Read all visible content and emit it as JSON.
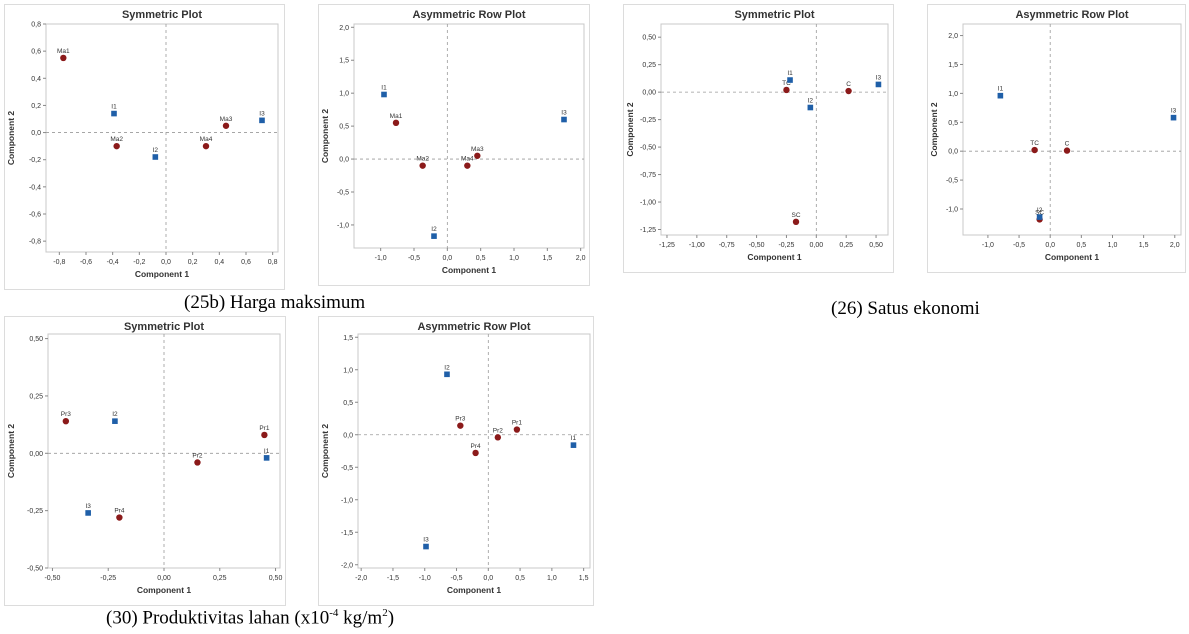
{
  "colors": {
    "row_point": "#8b1a1a",
    "col_point": "#1f5fa8",
    "axis_ref": "#9a9a9a",
    "plot_border": "#c8c8c8",
    "panel_border": "#dcdcdc",
    "text": "#333333"
  },
  "groups": [
    {
      "caption": "(25b) Harga maksimum"
    },
    {
      "caption": "(26) Satus ekonomi"
    },
    {
      "caption_main": "(30) ",
      "caption_bold": "Produktivitas lahan",
      "caption_pre": " (x10",
      "caption_sup": "-4",
      "caption_mid": " kg/m",
      "caption_sup2": "2",
      "caption_end": ")"
    }
  ],
  "chart_data": [
    {
      "type": "scatter",
      "title": "Symmetric Plot",
      "xlabel": "Component 1",
      "ylabel": "Component 2",
      "xlim": [
        -0.9,
        0.84
      ],
      "ylim": [
        -0.88,
        0.8
      ],
      "xticks": [
        -0.8,
        -0.6,
        -0.4,
        -0.2,
        0.0,
        0.2,
        0.4,
        0.6,
        0.8
      ],
      "yticks": [
        -0.8,
        -0.6,
        -0.4,
        -0.2,
        0.0,
        0.2,
        0.4,
        0.6,
        0.8
      ],
      "decimals": 1,
      "series": [
        {
          "name": "rows",
          "marker": "circle",
          "points": [
            {
              "label": "Ma1",
              "x": -0.77,
              "y": 0.55
            },
            {
              "label": "Ma2",
              "x": -0.37,
              "y": -0.1
            },
            {
              "label": "Ma3",
              "x": 0.45,
              "y": 0.05
            },
            {
              "label": "Ma4",
              "x": 0.3,
              "y": -0.1
            }
          ]
        },
        {
          "name": "columns",
          "marker": "square",
          "points": [
            {
              "label": "I1",
              "x": -0.39,
              "y": 0.14
            },
            {
              "label": "I2",
              "x": -0.08,
              "y": -0.18
            },
            {
              "label": "I3",
              "x": 0.72,
              "y": 0.09
            }
          ]
        }
      ]
    },
    {
      "type": "scatter",
      "title": "Asymmetric Row Plot",
      "xlabel": "Component 1",
      "ylabel": "Component 2",
      "xlim": [
        -1.4,
        2.05
      ],
      "ylim": [
        -1.35,
        2.05
      ],
      "xticks": [
        -1.0,
        -0.5,
        0.0,
        0.5,
        1.0,
        1.5,
        2.0
      ],
      "yticks": [
        -1.0,
        -0.5,
        0.0,
        0.5,
        1.0,
        1.5,
        2.0
      ],
      "decimals": 1,
      "series": [
        {
          "name": "rows",
          "marker": "circle",
          "points": [
            {
              "label": "Ma1",
              "x": -0.77,
              "y": 0.55
            },
            {
              "label": "Ma2",
              "x": -0.37,
              "y": -0.1
            },
            {
              "label": "Ma3",
              "x": 0.45,
              "y": 0.05
            },
            {
              "label": "Ma4",
              "x": 0.3,
              "y": -0.1
            }
          ]
        },
        {
          "name": "columns",
          "marker": "square",
          "points": [
            {
              "label": "I1",
              "x": -0.95,
              "y": 0.98
            },
            {
              "label": "I2",
              "x": -0.2,
              "y": -1.17
            },
            {
              "label": "I3",
              "x": 1.75,
              "y": 0.6
            }
          ]
        }
      ]
    },
    {
      "type": "scatter",
      "title": "Symmetric Plot",
      "xlabel": "Component 1",
      "ylabel": "Component 2",
      "xlim": [
        -1.3,
        0.6
      ],
      "ylim": [
        -1.3,
        0.62
      ],
      "xticks": [
        -1.25,
        -1.0,
        -0.75,
        -0.5,
        -0.25,
        0.0,
        0.25,
        0.5
      ],
      "yticks": [
        -1.25,
        -1.0,
        -0.75,
        -0.5,
        -0.25,
        0.0,
        0.25,
        0.5
      ],
      "decimals": 2,
      "series": [
        {
          "name": "rows",
          "marker": "circle",
          "points": [
            {
              "label": "TC",
              "x": -0.25,
              "y": 0.02
            },
            {
              "label": "C",
              "x": 0.27,
              "y": 0.01
            },
            {
              "label": "SC",
              "x": -0.17,
              "y": -1.18
            }
          ]
        },
        {
          "name": "columns",
          "marker": "square",
          "points": [
            {
              "label": "I1",
              "x": -0.22,
              "y": 0.11
            },
            {
              "label": "I2",
              "x": -0.05,
              "y": -0.14
            },
            {
              "label": "I3",
              "x": 0.52,
              "y": 0.07
            }
          ]
        }
      ]
    },
    {
      "type": "scatter",
      "title": "Asymmetric Row Plot",
      "xlabel": "Component 1",
      "ylabel": "Component 2",
      "xlim": [
        -1.4,
        2.1
      ],
      "ylim": [
        -1.45,
        2.2
      ],
      "xticks": [
        -1.0,
        -0.5,
        0.0,
        0.5,
        1.0,
        1.5,
        2.0
      ],
      "yticks": [
        -1.0,
        -0.5,
        0.0,
        0.5,
        1.0,
        1.5,
        2.0
      ],
      "decimals": 1,
      "series": [
        {
          "name": "rows",
          "marker": "circle",
          "points": [
            {
              "label": "TC",
              "x": -0.25,
              "y": 0.02
            },
            {
              "label": "C",
              "x": 0.27,
              "y": 0.01
            },
            {
              "label": "SC",
              "x": -0.17,
              "y": -1.18
            }
          ]
        },
        {
          "name": "columns",
          "marker": "square",
          "points": [
            {
              "label": "I1",
              "x": -0.8,
              "y": 0.96
            },
            {
              "label": "I2",
              "x": -0.17,
              "y": -1.14
            },
            {
              "label": "I3",
              "x": 1.98,
              "y": 0.58
            }
          ]
        }
      ]
    },
    {
      "type": "scatter",
      "title": "Symmetric Plot",
      "xlabel": "Component 1",
      "ylabel": "Component 2",
      "xlim": [
        -0.52,
        0.52
      ],
      "ylim": [
        -0.5,
        0.52
      ],
      "xticks": [
        -0.5,
        -0.25,
        0.0,
        0.25,
        0.5
      ],
      "yticks": [
        -0.5,
        -0.25,
        0.0,
        0.25,
        0.5
      ],
      "decimals": 2,
      "series": [
        {
          "name": "rows",
          "marker": "circle",
          "points": [
            {
              "label": "Pr1",
              "x": 0.45,
              "y": 0.08
            },
            {
              "label": "Pr2",
              "x": 0.15,
              "y": -0.04
            },
            {
              "label": "Pr3",
              "x": -0.44,
              "y": 0.14
            },
            {
              "label": "Pr4",
              "x": -0.2,
              "y": -0.28
            }
          ]
        },
        {
          "name": "columns",
          "marker": "square",
          "points": [
            {
              "label": "I1",
              "x": 0.46,
              "y": -0.02
            },
            {
              "label": "I2",
              "x": -0.22,
              "y": 0.14
            },
            {
              "label": "I3",
              "x": -0.34,
              "y": -0.26
            }
          ]
        }
      ]
    },
    {
      "type": "scatter",
      "title": "Asymmetric Row Plot",
      "xlabel": "Component 1",
      "ylabel": "Component 2",
      "xlim": [
        -2.05,
        1.6
      ],
      "ylim": [
        -2.05,
        1.55
      ],
      "xticks": [
        -2.0,
        -1.5,
        -1.0,
        -0.5,
        0.0,
        0.5,
        1.0,
        1.5
      ],
      "yticks": [
        -2.0,
        -1.5,
        -1.0,
        -0.5,
        0.0,
        0.5,
        1.0,
        1.5
      ],
      "decimals": 1,
      "series": [
        {
          "name": "rows",
          "marker": "circle",
          "points": [
            {
              "label": "Pr1",
              "x": 0.45,
              "y": 0.08
            },
            {
              "label": "Pr2",
              "x": 0.15,
              "y": -0.04
            },
            {
              "label": "Pr3",
              "x": -0.44,
              "y": 0.14
            },
            {
              "label": "Pr4",
              "x": -0.2,
              "y": -0.28
            }
          ]
        },
        {
          "name": "columns",
          "marker": "square",
          "points": [
            {
              "label": "I1",
              "x": 1.34,
              "y": -0.16
            },
            {
              "label": "I2",
              "x": -0.65,
              "y": 0.93
            },
            {
              "label": "I3",
              "x": -0.98,
              "y": -1.72
            }
          ]
        }
      ]
    }
  ]
}
